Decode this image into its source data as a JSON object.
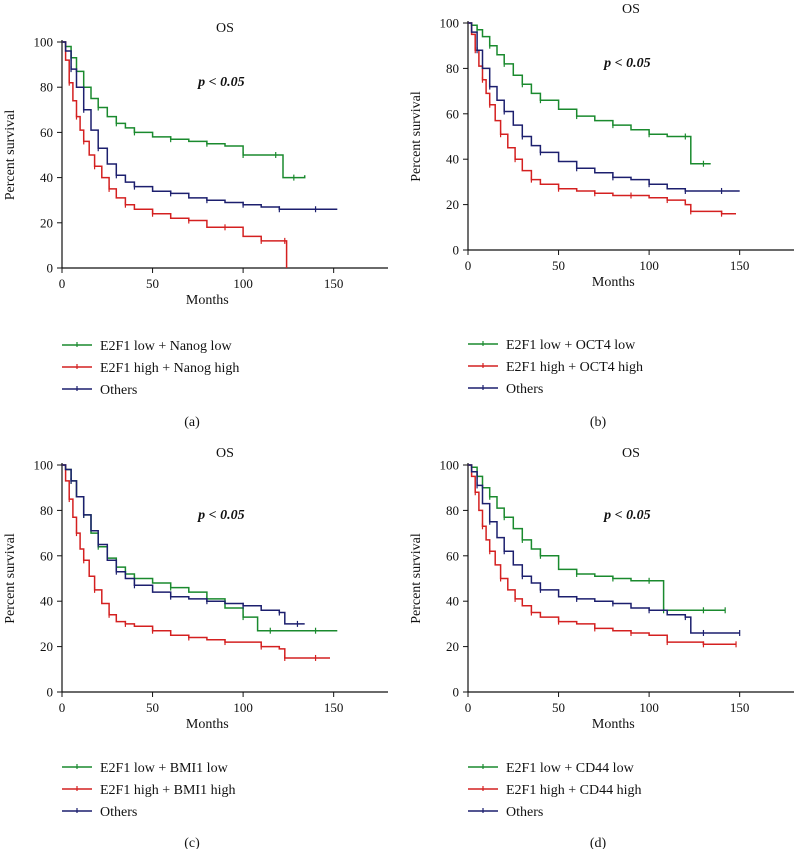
{
  "chart_data": [
    {
      "type": "line",
      "panel_label": "(a)",
      "title": "OS",
      "annotation": "p < 0.05",
      "xlabel": "Months",
      "ylabel": "Percent survival",
      "xlim": [
        0,
        180
      ],
      "ylim": [
        0,
        100
      ],
      "xticks": [
        "0",
        "50",
        "100",
        "150"
      ],
      "yticks": [
        "0",
        "20",
        "40",
        "60",
        "80",
        "100"
      ],
      "series": [
        {
          "name": "E2F1 low + Nanog low",
          "color": "#1a8a2e",
          "x": [
            0,
            2,
            5,
            8,
            12,
            16,
            20,
            25,
            30,
            35,
            40,
            50,
            60,
            70,
            80,
            90,
            100,
            110,
            118,
            122,
            128,
            134
          ],
          "y": [
            100,
            98,
            93,
            87,
            80,
            75,
            71,
            67,
            64,
            62,
            60,
            58,
            57,
            56,
            55,
            54,
            50,
            50,
            50,
            40,
            40,
            41
          ]
        },
        {
          "name": "E2F1 high + Nanog high",
          "color": "#d42020",
          "x": [
            0,
            2,
            4,
            6,
            8,
            10,
            12,
            15,
            18,
            22,
            26,
            30,
            35,
            40,
            50,
            60,
            70,
            80,
            90,
            100,
            110,
            120,
            123,
            124
          ],
          "y": [
            100,
            92,
            82,
            74,
            67,
            61,
            56,
            50,
            45,
            40,
            35,
            31,
            28,
            26,
            24,
            22,
            21,
            18,
            18,
            14,
            12,
            12,
            12,
            0
          ]
        },
        {
          "name": "Others",
          "color": "#1c1f6e",
          "x": [
            0,
            2,
            5,
            8,
            12,
            16,
            20,
            25,
            30,
            35,
            40,
            50,
            60,
            70,
            80,
            90,
            100,
            110,
            120,
            130,
            140,
            152
          ],
          "y": [
            100,
            96,
            88,
            80,
            70,
            61,
            53,
            46,
            41,
            38,
            36,
            34,
            33,
            31,
            30,
            29,
            28,
            27,
            26,
            26,
            26,
            26
          ]
        }
      ]
    },
    {
      "type": "line",
      "panel_label": "(b)",
      "title": "OS",
      "annotation": "p < 0.05",
      "xlabel": "Months",
      "ylabel": "Percent survival",
      "xlim": [
        0,
        180
      ],
      "ylim": [
        0,
        100
      ],
      "xticks": [
        "0",
        "50",
        "100",
        "150"
      ],
      "yticks": [
        "0",
        "20",
        "40",
        "60",
        "80",
        "100"
      ],
      "series": [
        {
          "name": "E2F1 low + OCT4 low",
          "color": "#1a8a2e",
          "x": [
            0,
            2,
            5,
            8,
            12,
            16,
            20,
            25,
            30,
            35,
            40,
            50,
            60,
            70,
            80,
            90,
            100,
            110,
            120,
            123,
            130,
            134
          ],
          "y": [
            100,
            99,
            97,
            94,
            90,
            86,
            82,
            77,
            73,
            69,
            66,
            62,
            59,
            57,
            55,
            53,
            51,
            50,
            50,
            38,
            38,
            38
          ]
        },
        {
          "name": "E2F1 high + OCT4 high",
          "color": "#d42020",
          "x": [
            0,
            2,
            4,
            6,
            8,
            10,
            12,
            15,
            18,
            22,
            26,
            30,
            35,
            40,
            50,
            60,
            70,
            80,
            90,
            100,
            110,
            120,
            123,
            130,
            140,
            148
          ],
          "y": [
            100,
            95,
            88,
            81,
            75,
            69,
            64,
            57,
            51,
            45,
            40,
            35,
            31,
            29,
            27,
            26,
            25,
            24,
            24,
            23,
            22,
            20,
            17,
            17,
            16,
            16
          ]
        },
        {
          "name": "Others",
          "color": "#1c1f6e",
          "x": [
            0,
            2,
            5,
            8,
            12,
            16,
            20,
            25,
            30,
            35,
            40,
            50,
            60,
            70,
            80,
            90,
            100,
            110,
            120,
            130,
            140,
            150
          ],
          "y": [
            100,
            96,
            88,
            80,
            72,
            66,
            61,
            55,
            50,
            46,
            43,
            39,
            36,
            34,
            32,
            31,
            29,
            27,
            26,
            26,
            26,
            26
          ]
        }
      ]
    },
    {
      "type": "line",
      "panel_label": "(c)",
      "title": "OS",
      "annotation": "p < 0.05",
      "xlabel": "Months",
      "ylabel": "Percent survival",
      "xlim": [
        0,
        180
      ],
      "ylim": [
        0,
        100
      ],
      "xticks": [
        "0",
        "50",
        "100",
        "150"
      ],
      "yticks": [
        "0",
        "20",
        "40",
        "60",
        "80",
        "100"
      ],
      "series": [
        {
          "name": "E2F1 low + BMI1 low",
          "color": "#1a8a2e",
          "x": [
            0,
            2,
            5,
            8,
            12,
            16,
            20,
            25,
            30,
            35,
            40,
            50,
            60,
            70,
            80,
            90,
            100,
            108,
            115,
            130,
            140,
            152
          ],
          "y": [
            100,
            98,
            93,
            86,
            78,
            70,
            64,
            59,
            55,
            52,
            50,
            48,
            46,
            44,
            41,
            37,
            33,
            27,
            27,
            27,
            27,
            27
          ]
        },
        {
          "name": "E2F1 high + BMI1 high",
          "color": "#d42020",
          "x": [
            0,
            2,
            4,
            6,
            8,
            10,
            12,
            15,
            18,
            22,
            26,
            30,
            35,
            40,
            50,
            60,
            70,
            80,
            90,
            100,
            110,
            120,
            123,
            130,
            140,
            148
          ],
          "y": [
            100,
            93,
            85,
            77,
            70,
            63,
            58,
            51,
            45,
            39,
            34,
            31,
            30,
            29,
            27,
            25,
            24,
            23,
            22,
            22,
            20,
            19,
            15,
            15,
            15,
            15
          ]
        },
        {
          "name": "Others",
          "color": "#1c1f6e",
          "x": [
            0,
            2,
            5,
            8,
            12,
            16,
            20,
            25,
            30,
            35,
            40,
            50,
            60,
            70,
            80,
            90,
            100,
            110,
            120,
            123,
            130,
            134
          ],
          "y": [
            100,
            98,
            93,
            86,
            78,
            71,
            65,
            58,
            53,
            50,
            47,
            44,
            42,
            41,
            40,
            39,
            38,
            36,
            35,
            30,
            30,
            30
          ]
        }
      ]
    },
    {
      "type": "line",
      "panel_label": "(d)",
      "title": "OS",
      "annotation": "p < 0.05",
      "xlabel": "Months",
      "ylabel": "Percent survival",
      "xlim": [
        0,
        180
      ],
      "ylim": [
        0,
        100
      ],
      "xticks": [
        "0",
        "50",
        "100",
        "150"
      ],
      "yticks": [
        "0",
        "20",
        "40",
        "60",
        "80",
        "100"
      ],
      "series": [
        {
          "name": "E2F1 low + CD44 low",
          "color": "#1a8a2e",
          "x": [
            0,
            2,
            5,
            8,
            12,
            16,
            20,
            25,
            30,
            35,
            40,
            50,
            60,
            70,
            80,
            90,
            100,
            107,
            108,
            120,
            130,
            140,
            142
          ],
          "y": [
            100,
            99,
            95,
            90,
            86,
            81,
            77,
            72,
            67,
            63,
            60,
            54,
            52,
            51,
            50,
            49,
            49,
            49,
            36,
            36,
            36,
            36,
            36
          ]
        },
        {
          "name": "E2F1 high + CD44 high",
          "color": "#d42020",
          "x": [
            0,
            2,
            4,
            6,
            8,
            10,
            12,
            15,
            18,
            22,
            26,
            30,
            35,
            40,
            50,
            60,
            70,
            80,
            90,
            100,
            110,
            120,
            130,
            140,
            148
          ],
          "y": [
            100,
            95,
            88,
            80,
            73,
            67,
            62,
            56,
            50,
            45,
            41,
            38,
            35,
            33,
            31,
            30,
            28,
            27,
            26,
            25,
            22,
            22,
            21,
            21,
            21
          ]
        },
        {
          "name": "Others",
          "color": "#1c1f6e",
          "x": [
            0,
            2,
            5,
            8,
            12,
            16,
            20,
            25,
            30,
            35,
            40,
            50,
            60,
            70,
            80,
            90,
            100,
            110,
            120,
            123,
            130,
            140,
            150
          ],
          "y": [
            100,
            97,
            91,
            83,
            75,
            68,
            62,
            56,
            51,
            48,
            45,
            42,
            41,
            40,
            39,
            37,
            36,
            34,
            33,
            26,
            26,
            26,
            26
          ]
        }
      ]
    }
  ]
}
